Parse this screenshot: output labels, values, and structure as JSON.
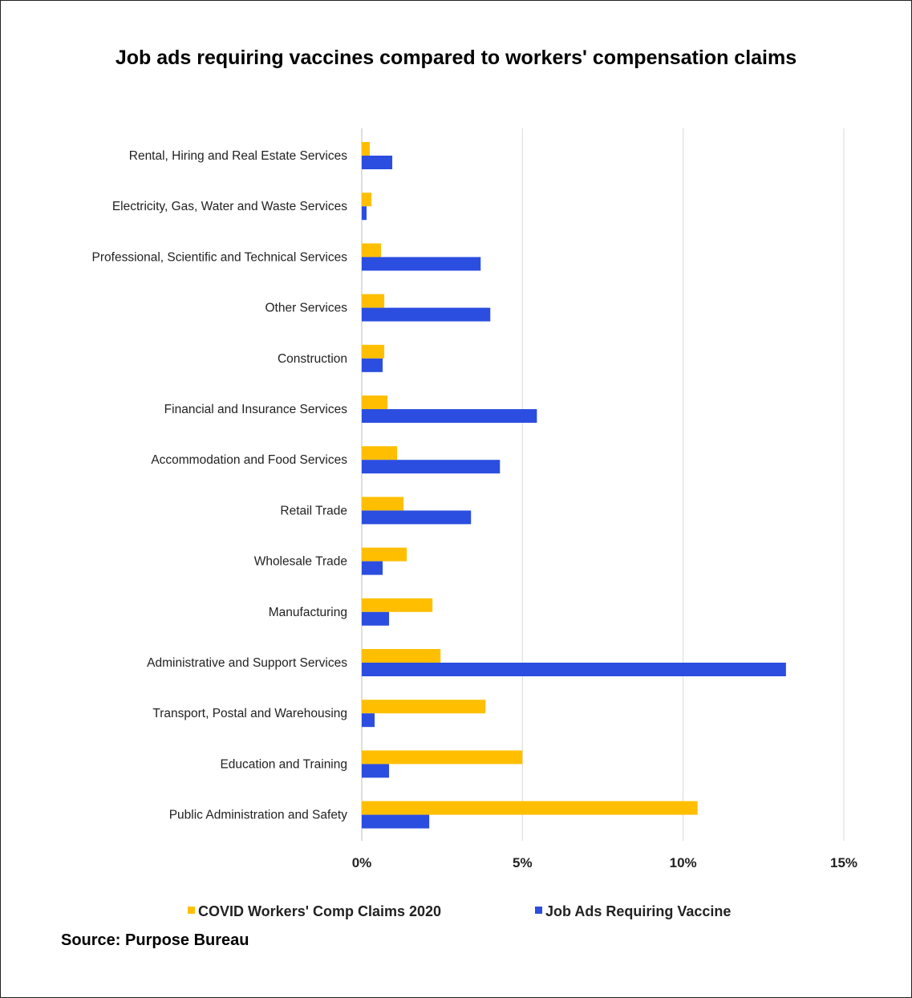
{
  "chart_data": {
    "type": "bar",
    "orientation": "horizontal",
    "title": "Job ads requiring vaccines compared to workers' compensation claims",
    "categories": [
      "Rental, Hiring and Real Estate Services",
      "Electricity, Gas, Water and Waste Services",
      "Professional, Scientific and Technical Services",
      "Other Services",
      "Construction",
      "Financial and Insurance Services",
      "Accommodation and Food Services",
      "Retail Trade",
      "Wholesale Trade",
      "Manufacturing",
      "Administrative and Support Services",
      "Transport, Postal and Warehousing",
      "Education and Training",
      "Public Administration and Safety"
    ],
    "series": [
      {
        "name": "COVID Workers' Comp Claims 2020",
        "color": "#FFBF00",
        "values": [
          0.25,
          0.3,
          0.6,
          0.7,
          0.7,
          0.8,
          1.1,
          1.3,
          1.4,
          2.2,
          2.45,
          3.85,
          5.0,
          10.45
        ]
      },
      {
        "name": "Job Ads Requiring Vaccine",
        "color": "#2B4EE0",
        "values": [
          0.95,
          0.15,
          3.7,
          4.0,
          0.65,
          5.45,
          4.3,
          3.4,
          0.65,
          0.85,
          13.2,
          0.4,
          0.85,
          2.1
        ]
      }
    ],
    "xticks": [
      "0%",
      "5%",
      "10%",
      "15%"
    ],
    "xlim": [
      0,
      15
    ],
    "grid": true,
    "legend_position": "bottom"
  },
  "source": "Source: Purpose Bureau"
}
